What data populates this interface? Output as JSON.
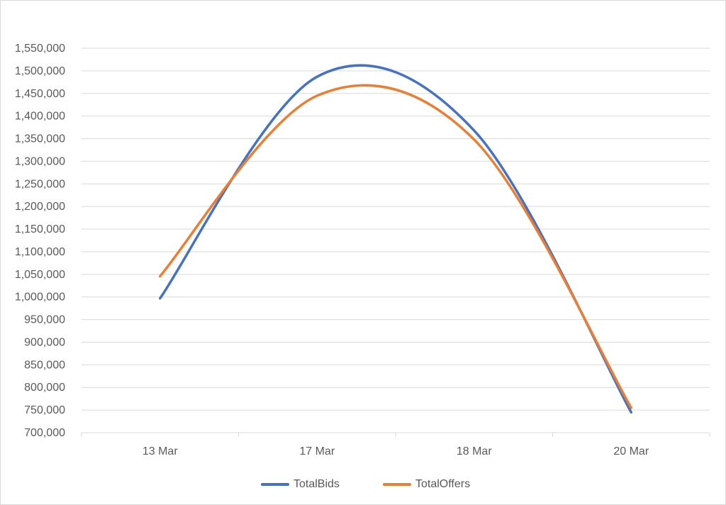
{
  "chart_data": {
    "type": "line",
    "title": "",
    "xlabel": "",
    "ylabel": "",
    "categories": [
      "13 Mar",
      "17 Mar",
      "18 Mar",
      "20 Mar"
    ],
    "x_ticks": [
      "13 Mar",
      "17 Mar",
      "18 Mar",
      "20 Mar"
    ],
    "y_ticks": [
      "700,000",
      "750,000",
      "800,000",
      "850,000",
      "900,000",
      "950,000",
      "1,000,000",
      "1,050,000",
      "1,100,000",
      "1,150,000",
      "1,200,000",
      "1,250,000",
      "1,300,000",
      "1,350,000",
      "1,400,000",
      "1,450,000",
      "1,500,000",
      "1,550,000"
    ],
    "ylim": [
      700000,
      1550000
    ],
    "grid": true,
    "smooth": true,
    "legend_position": "bottom",
    "series": [
      {
        "name": "TotalBids",
        "color": "#4472C4",
        "values": [
          997000,
          1487000,
          1368000,
          745000
        ]
      },
      {
        "name": "TotalOffers",
        "color": "#ED7D31",
        "values": [
          1046000,
          1445000,
          1348000,
          755000
        ]
      }
    ]
  }
}
